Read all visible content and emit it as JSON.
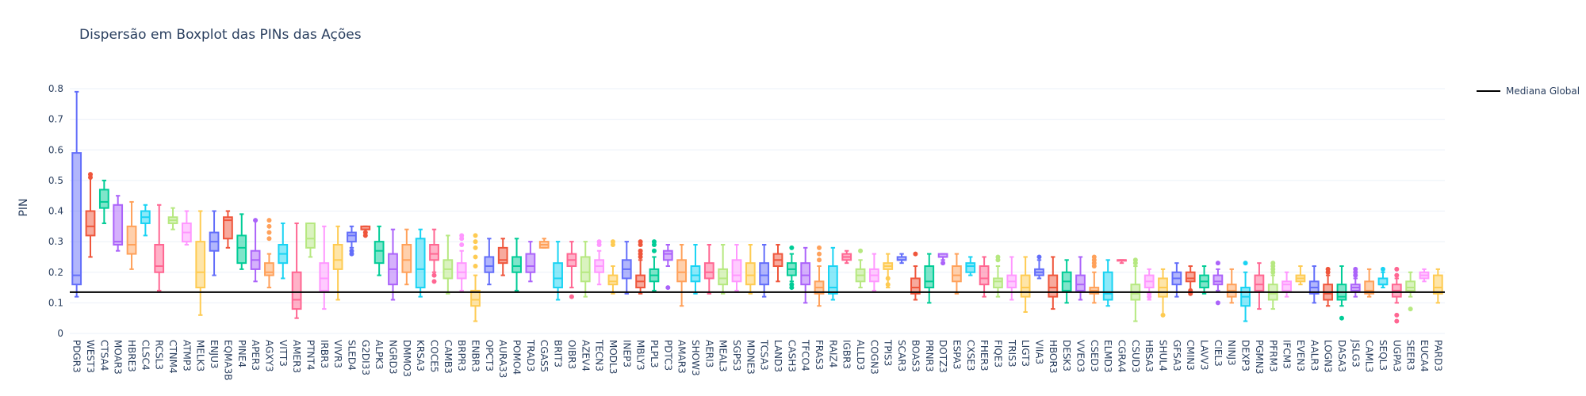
{
  "chart_data": {
    "type": "box",
    "title": "Dispersão em Boxplot das PINs das Ações",
    "ylabel": "PIN",
    "xlabel": "",
    "ylim": [
      0,
      0.8
    ],
    "yticks": [
      0,
      0.1,
      0.2,
      0.3,
      0.4,
      0.5,
      0.6,
      0.7,
      0.8
    ],
    "ytick_labels": [
      "0",
      "0.1",
      "0.2",
      "0.3",
      "0.4",
      "0.5",
      "0.6",
      "0.7",
      "0.8"
    ],
    "grid": true,
    "legend_position": "top-right",
    "reference_line": {
      "name": "Mediana Global",
      "value": 0.135,
      "color": "#000000"
    },
    "palette": [
      "#636efa",
      "#ef553b",
      "#00cc96",
      "#ab63fa",
      "#ffa15a",
      "#19d3f3",
      "#ff6692",
      "#b6e880",
      "#ff97ff",
      "#fecb52"
    ],
    "categories": [
      "PDGR3",
      "WEST3",
      "CTSA4",
      "MOAR3",
      "HBRE3",
      "CLSC4",
      "RCSL3",
      "CTNM4",
      "ATMP3",
      "MELK3",
      "ENJU3",
      "EQMA3B",
      "PINE4",
      "APER3",
      "AGXY3",
      "VITT3",
      "AMER3",
      "PTNT4",
      "IRBR3",
      "VIVR3",
      "SLED4",
      "G2DI33",
      "ALPK3",
      "NGRD3",
      "DMMO3",
      "KRSA3",
      "COCE5",
      "CAMB3",
      "BRPR3",
      "ENBR3",
      "OPCT3",
      "AURA33",
      "POMO4",
      "TRAD3",
      "CGAS5",
      "BRIT3",
      "OIBR3",
      "AZEV4",
      "TECN3",
      "MODL3",
      "INEP3",
      "MBLY3",
      "PLPL3",
      "PDTC3",
      "AMAR3",
      "SHOW3",
      "AERI3",
      "MEAL3",
      "SGPS3",
      "MDNE3",
      "TCSA3",
      "LAND3",
      "CASH3",
      "TFCO4",
      "FRAS3",
      "RAIZ4",
      "IGBR3",
      "ALLD3",
      "COGN3",
      "TPIS3",
      "SCAR3",
      "BOAS3",
      "PRNR3",
      "DOTZ3",
      "ESPA3",
      "CXSE3",
      "FHER3",
      "FIQE3",
      "TRIS3",
      "LIGT3",
      "VIIA3",
      "HBOR3",
      "DESK3",
      "VVEO3",
      "CSED3",
      "ELMD3",
      "CGRA4",
      "CSUD3",
      "HBSA3",
      "SHUL4",
      "GFSA3",
      "CMIN3",
      "LAVV3",
      "CIEL3",
      "NINJ3",
      "DEXP3",
      "PGMN3",
      "PFRM3",
      "IFCM3",
      "EVEN3",
      "AALR3",
      "LOGN3",
      "DASA3",
      "JSLG3",
      "CAML3",
      "SEQL3",
      "UGPA3",
      "SEER3",
      "EUCA4",
      "PARD3"
    ],
    "boxes": [
      {
        "min": 0.12,
        "q1": 0.16,
        "median": 0.19,
        "q3": 0.59,
        "max": 0.79,
        "outliers": []
      },
      {
        "min": 0.25,
        "q1": 0.32,
        "median": 0.35,
        "q3": 0.4,
        "max": 0.52,
        "outliers": [
          0.51,
          0.52
        ]
      },
      {
        "min": 0.36,
        "q1": 0.41,
        "median": 0.43,
        "q3": 0.47,
        "max": 0.5,
        "outliers": []
      },
      {
        "min": 0.27,
        "q1": 0.29,
        "median": 0.3,
        "q3": 0.42,
        "max": 0.45,
        "outliers": []
      },
      {
        "min": 0.21,
        "q1": 0.26,
        "median": 0.29,
        "q3": 0.35,
        "max": 0.43,
        "outliers": []
      },
      {
        "min": 0.32,
        "q1": 0.36,
        "median": 0.38,
        "q3": 0.4,
        "max": 0.42,
        "outliers": []
      },
      {
        "min": 0.14,
        "q1": 0.2,
        "median": 0.22,
        "q3": 0.29,
        "max": 0.42,
        "outliers": []
      },
      {
        "min": 0.34,
        "q1": 0.36,
        "median": 0.37,
        "q3": 0.38,
        "max": 0.41,
        "outliers": []
      },
      {
        "min": 0.29,
        "q1": 0.3,
        "median": 0.33,
        "q3": 0.36,
        "max": 0.4,
        "outliers": []
      },
      {
        "min": 0.06,
        "q1": 0.15,
        "median": 0.2,
        "q3": 0.3,
        "max": 0.4,
        "outliers": []
      },
      {
        "min": 0.19,
        "q1": 0.27,
        "median": 0.3,
        "q3": 0.33,
        "max": 0.4,
        "outliers": []
      },
      {
        "min": 0.28,
        "q1": 0.31,
        "median": 0.37,
        "q3": 0.38,
        "max": 0.4,
        "outliers": []
      },
      {
        "min": 0.21,
        "q1": 0.23,
        "median": 0.28,
        "q3": 0.32,
        "max": 0.39,
        "outliers": []
      },
      {
        "min": 0.17,
        "q1": 0.21,
        "median": 0.24,
        "q3": 0.27,
        "max": 0.37,
        "outliers": [
          0.37
        ]
      },
      {
        "min": 0.15,
        "q1": 0.19,
        "median": 0.2,
        "q3": 0.23,
        "max": 0.26,
        "outliers": [
          0.31,
          0.33,
          0.35,
          0.37
        ]
      },
      {
        "min": 0.18,
        "q1": 0.23,
        "median": 0.26,
        "q3": 0.29,
        "max": 0.36,
        "outliers": []
      },
      {
        "min": 0.05,
        "q1": 0.08,
        "median": 0.11,
        "q3": 0.2,
        "max": 0.36,
        "outliers": []
      },
      {
        "min": 0.25,
        "q1": 0.28,
        "median": 0.31,
        "q3": 0.36,
        "max": 0.36,
        "outliers": []
      },
      {
        "min": 0.08,
        "q1": 0.14,
        "median": 0.18,
        "q3": 0.23,
        "max": 0.35,
        "outliers": []
      },
      {
        "min": 0.11,
        "q1": 0.21,
        "median": 0.24,
        "q3": 0.29,
        "max": 0.35,
        "outliers": []
      },
      {
        "min": 0.28,
        "q1": 0.3,
        "median": 0.32,
        "q3": 0.33,
        "max": 0.35,
        "outliers": [
          0.26,
          0.27
        ]
      },
      {
        "min": 0.33,
        "q1": 0.34,
        "median": 0.34,
        "q3": 0.35,
        "max": 0.35,
        "outliers": [
          0.32,
          0.33
        ]
      },
      {
        "min": 0.19,
        "q1": 0.23,
        "median": 0.27,
        "q3": 0.3,
        "max": 0.35,
        "outliers": []
      },
      {
        "min": 0.11,
        "q1": 0.16,
        "median": 0.21,
        "q3": 0.26,
        "max": 0.34,
        "outliers": []
      },
      {
        "min": 0.16,
        "q1": 0.2,
        "median": 0.24,
        "q3": 0.29,
        "max": 0.34,
        "outliers": []
      },
      {
        "min": 0.12,
        "q1": 0.15,
        "median": 0.21,
        "q3": 0.31,
        "max": 0.34,
        "outliers": []
      },
      {
        "min": 0.2,
        "q1": 0.24,
        "median": 0.26,
        "q3": 0.29,
        "max": 0.34,
        "outliers": [
          0.17,
          0.19
        ]
      },
      {
        "min": 0.13,
        "q1": 0.18,
        "median": 0.21,
        "q3": 0.24,
        "max": 0.32,
        "outliers": []
      },
      {
        "min": 0.14,
        "q1": 0.18,
        "median": 0.2,
        "q3": 0.23,
        "max": 0.27,
        "outliers": [
          0.29,
          0.31,
          0.32
        ]
      },
      {
        "min": 0.04,
        "q1": 0.09,
        "median": 0.11,
        "q3": 0.14,
        "max": 0.19,
        "outliers": [
          0.22,
          0.25,
          0.28,
          0.3,
          0.32
        ]
      },
      {
        "min": 0.16,
        "q1": 0.2,
        "median": 0.22,
        "q3": 0.25,
        "max": 0.31,
        "outliers": []
      },
      {
        "min": 0.19,
        "q1": 0.23,
        "median": 0.24,
        "q3": 0.28,
        "max": 0.31,
        "outliers": []
      },
      {
        "min": 0.14,
        "q1": 0.2,
        "median": 0.22,
        "q3": 0.25,
        "max": 0.31,
        "outliers": []
      },
      {
        "min": 0.17,
        "q1": 0.2,
        "median": 0.22,
        "q3": 0.26,
        "max": 0.3,
        "outliers": []
      },
      {
        "min": 0.28,
        "q1": 0.28,
        "median": 0.29,
        "q3": 0.3,
        "max": 0.31,
        "outliers": []
      },
      {
        "min": 0.11,
        "q1": 0.15,
        "median": 0.18,
        "q3": 0.23,
        "max": 0.3,
        "outliers": []
      },
      {
        "min": 0.15,
        "q1": 0.22,
        "median": 0.24,
        "q3": 0.26,
        "max": 0.3,
        "outliers": [
          0.12
        ]
      },
      {
        "min": 0.12,
        "q1": 0.17,
        "median": 0.2,
        "q3": 0.25,
        "max": 0.3,
        "outliers": []
      },
      {
        "min": 0.16,
        "q1": 0.2,
        "median": 0.22,
        "q3": 0.24,
        "max": 0.27,
        "outliers": [
          0.29,
          0.3
        ]
      },
      {
        "min": 0.13,
        "q1": 0.16,
        "median": 0.17,
        "q3": 0.19,
        "max": 0.22,
        "outliers": [
          0.29,
          0.3
        ]
      },
      {
        "min": 0.13,
        "q1": 0.18,
        "median": 0.21,
        "q3": 0.24,
        "max": 0.3,
        "outliers": []
      },
      {
        "min": 0.13,
        "q1": 0.15,
        "median": 0.17,
        "q3": 0.19,
        "max": 0.24,
        "outliers": [
          0.25,
          0.26,
          0.27,
          0.29,
          0.3
        ]
      },
      {
        "min": 0.14,
        "q1": 0.17,
        "median": 0.19,
        "q3": 0.21,
        "max": 0.25,
        "outliers": [
          0.27,
          0.29,
          0.3
        ]
      },
      {
        "min": 0.22,
        "q1": 0.24,
        "median": 0.26,
        "q3": 0.27,
        "max": 0.29,
        "outliers": [
          0.15
        ]
      },
      {
        "min": 0.09,
        "q1": 0.17,
        "median": 0.2,
        "q3": 0.24,
        "max": 0.29,
        "outliers": []
      },
      {
        "min": 0.13,
        "q1": 0.17,
        "median": 0.19,
        "q3": 0.22,
        "max": 0.29,
        "outliers": []
      },
      {
        "min": 0.13,
        "q1": 0.18,
        "median": 0.2,
        "q3": 0.23,
        "max": 0.29,
        "outliers": []
      },
      {
        "min": 0.13,
        "q1": 0.16,
        "median": 0.18,
        "q3": 0.21,
        "max": 0.29,
        "outliers": []
      },
      {
        "min": 0.14,
        "q1": 0.17,
        "median": 0.19,
        "q3": 0.24,
        "max": 0.29,
        "outliers": []
      },
      {
        "min": 0.13,
        "q1": 0.16,
        "median": 0.19,
        "q3": 0.23,
        "max": 0.29,
        "outliers": []
      },
      {
        "min": 0.12,
        "q1": 0.16,
        "median": 0.19,
        "q3": 0.23,
        "max": 0.29,
        "outliers": []
      },
      {
        "min": 0.17,
        "q1": 0.22,
        "median": 0.24,
        "q3": 0.26,
        "max": 0.29,
        "outliers": []
      },
      {
        "min": 0.17,
        "q1": 0.19,
        "median": 0.21,
        "q3": 0.23,
        "max": 0.26,
        "outliers": [
          0.15,
          0.16,
          0.28
        ]
      },
      {
        "min": 0.1,
        "q1": 0.16,
        "median": 0.19,
        "q3": 0.23,
        "max": 0.28,
        "outliers": []
      },
      {
        "min": 0.09,
        "q1": 0.13,
        "median": 0.15,
        "q3": 0.17,
        "max": 0.22,
        "outliers": [
          0.24,
          0.26,
          0.28
        ]
      },
      {
        "min": 0.11,
        "q1": 0.13,
        "median": 0.15,
        "q3": 0.22,
        "max": 0.28,
        "outliers": []
      },
      {
        "min": 0.23,
        "q1": 0.24,
        "median": 0.25,
        "q3": 0.26,
        "max": 0.27,
        "outliers": []
      },
      {
        "min": 0.15,
        "q1": 0.17,
        "median": 0.19,
        "q3": 0.21,
        "max": 0.24,
        "outliers": [
          0.27
        ]
      },
      {
        "min": 0.14,
        "q1": 0.17,
        "median": 0.19,
        "q3": 0.21,
        "max": 0.26,
        "outliers": []
      },
      {
        "min": 0.15,
        "q1": 0.21,
        "median": 0.22,
        "q3": 0.23,
        "max": 0.26,
        "outliers": [
          0.16,
          0.18
        ]
      },
      {
        "min": 0.23,
        "q1": 0.24,
        "median": 0.24,
        "q3": 0.25,
        "max": 0.26,
        "outliers": []
      },
      {
        "min": 0.11,
        "q1": 0.13,
        "median": 0.15,
        "q3": 0.18,
        "max": 0.22,
        "outliers": [
          0.26
        ]
      },
      {
        "min": 0.1,
        "q1": 0.15,
        "median": 0.17,
        "q3": 0.22,
        "max": 0.26,
        "outliers": []
      },
      {
        "min": 0.24,
        "q1": 0.25,
        "median": 0.25,
        "q3": 0.26,
        "max": 0.26,
        "outliers": [
          0.23
        ]
      },
      {
        "min": 0.13,
        "q1": 0.17,
        "median": 0.19,
        "q3": 0.22,
        "max": 0.26,
        "outliers": []
      },
      {
        "min": 0.19,
        "q1": 0.2,
        "median": 0.22,
        "q3": 0.23,
        "max": 0.25,
        "outliers": []
      },
      {
        "min": 0.12,
        "q1": 0.16,
        "median": 0.18,
        "q3": 0.22,
        "max": 0.25,
        "outliers": []
      },
      {
        "min": 0.12,
        "q1": 0.15,
        "median": 0.17,
        "q3": 0.18,
        "max": 0.22,
        "outliers": [
          0.24,
          0.25
        ]
      },
      {
        "min": 0.11,
        "q1": 0.15,
        "median": 0.17,
        "q3": 0.19,
        "max": 0.25,
        "outliers": []
      },
      {
        "min": 0.07,
        "q1": 0.12,
        "median": 0.15,
        "q3": 0.19,
        "max": 0.25,
        "outliers": []
      },
      {
        "min": 0.18,
        "q1": 0.19,
        "median": 0.2,
        "q3": 0.21,
        "max": 0.24,
        "outliers": [
          0.25
        ]
      },
      {
        "min": 0.08,
        "q1": 0.12,
        "median": 0.15,
        "q3": 0.19,
        "max": 0.25,
        "outliers": []
      },
      {
        "min": 0.1,
        "q1": 0.14,
        "median": 0.17,
        "q3": 0.2,
        "max": 0.24,
        "outliers": []
      },
      {
        "min": 0.11,
        "q1": 0.14,
        "median": 0.16,
        "q3": 0.19,
        "max": 0.25,
        "outliers": []
      },
      {
        "min": 0.1,
        "q1": 0.13,
        "median": 0.14,
        "q3": 0.15,
        "max": 0.2,
        "outliers": [
          0.22,
          0.23,
          0.24,
          0.25
        ]
      },
      {
        "min": 0.09,
        "q1": 0.11,
        "median": 0.13,
        "q3": 0.2,
        "max": 0.24,
        "outliers": []
      },
      {
        "min": 0.23,
        "q1": 0.24,
        "median": 0.24,
        "q3": 0.24,
        "max": 0.24,
        "outliers": []
      },
      {
        "min": 0.04,
        "q1": 0.11,
        "median": 0.13,
        "q3": 0.16,
        "max": 0.22,
        "outliers": [
          0.23,
          0.24
        ]
      },
      {
        "min": 0.11,
        "q1": 0.15,
        "median": 0.17,
        "q3": 0.19,
        "max": 0.21,
        "outliers": [
          0.12,
          0.13
        ]
      },
      {
        "min": 0.06,
        "q1": 0.12,
        "median": 0.15,
        "q3": 0.18,
        "max": 0.21,
        "outliers": [
          0.06
        ]
      },
      {
        "min": 0.12,
        "q1": 0.16,
        "median": 0.18,
        "q3": 0.2,
        "max": 0.23,
        "outliers": []
      },
      {
        "min": 0.14,
        "q1": 0.17,
        "median": 0.18,
        "q3": 0.2,
        "max": 0.22,
        "outliers": [
          0.13,
          0.14
        ]
      },
      {
        "min": 0.13,
        "q1": 0.15,
        "median": 0.17,
        "q3": 0.19,
        "max": 0.22,
        "outliers": []
      },
      {
        "min": 0.14,
        "q1": 0.16,
        "median": 0.17,
        "q3": 0.19,
        "max": 0.21,
        "outliers": [
          0.1,
          0.23
        ]
      },
      {
        "min": 0.1,
        "q1": 0.12,
        "median": 0.14,
        "q3": 0.16,
        "max": 0.21,
        "outliers": []
      },
      {
        "min": 0.04,
        "q1": 0.09,
        "median": 0.12,
        "q3": 0.15,
        "max": 0.2,
        "outliers": [
          0.23
        ]
      },
      {
        "min": 0.08,
        "q1": 0.14,
        "median": 0.16,
        "q3": 0.19,
        "max": 0.23,
        "outliers": []
      },
      {
        "min": 0.08,
        "q1": 0.11,
        "median": 0.13,
        "q3": 0.16,
        "max": 0.19,
        "outliers": [
          0.2,
          0.21,
          0.22,
          0.23
        ]
      },
      {
        "min": 0.12,
        "q1": 0.14,
        "median": 0.16,
        "q3": 0.17,
        "max": 0.2,
        "outliers": []
      },
      {
        "min": 0.16,
        "q1": 0.17,
        "median": 0.18,
        "q3": 0.19,
        "max": 0.22,
        "outliers": []
      },
      {
        "min": 0.1,
        "q1": 0.13,
        "median": 0.15,
        "q3": 0.17,
        "max": 0.22,
        "outliers": []
      },
      {
        "min": 0.09,
        "q1": 0.11,
        "median": 0.13,
        "q3": 0.16,
        "max": 0.19,
        "outliers": [
          0.2,
          0.21
        ]
      },
      {
        "min": 0.09,
        "q1": 0.11,
        "median": 0.12,
        "q3": 0.16,
        "max": 0.22,
        "outliers": [
          0.05
        ]
      },
      {
        "min": 0.12,
        "q1": 0.14,
        "median": 0.15,
        "q3": 0.16,
        "max": 0.18,
        "outliers": [
          0.19,
          0.2,
          0.21
        ]
      },
      {
        "min": 0.12,
        "q1": 0.13,
        "median": 0.14,
        "q3": 0.17,
        "max": 0.21,
        "outliers": []
      },
      {
        "min": 0.15,
        "q1": 0.16,
        "median": 0.16,
        "q3": 0.18,
        "max": 0.2,
        "outliers": [
          0.21
        ]
      },
      {
        "min": 0.1,
        "q1": 0.12,
        "median": 0.14,
        "q3": 0.16,
        "max": 0.18,
        "outliers": [
          0.04,
          0.06,
          0.19,
          0.21
        ]
      },
      {
        "min": 0.12,
        "q1": 0.14,
        "median": 0.15,
        "q3": 0.17,
        "max": 0.2,
        "outliers": [
          0.08
        ]
      },
      {
        "min": 0.17,
        "q1": 0.18,
        "median": 0.19,
        "q3": 0.2,
        "max": 0.21,
        "outliers": []
      },
      {
        "min": 0.1,
        "q1": 0.13,
        "median": 0.15,
        "q3": 0.19,
        "max": 0.21,
        "outliers": []
      }
    ]
  }
}
